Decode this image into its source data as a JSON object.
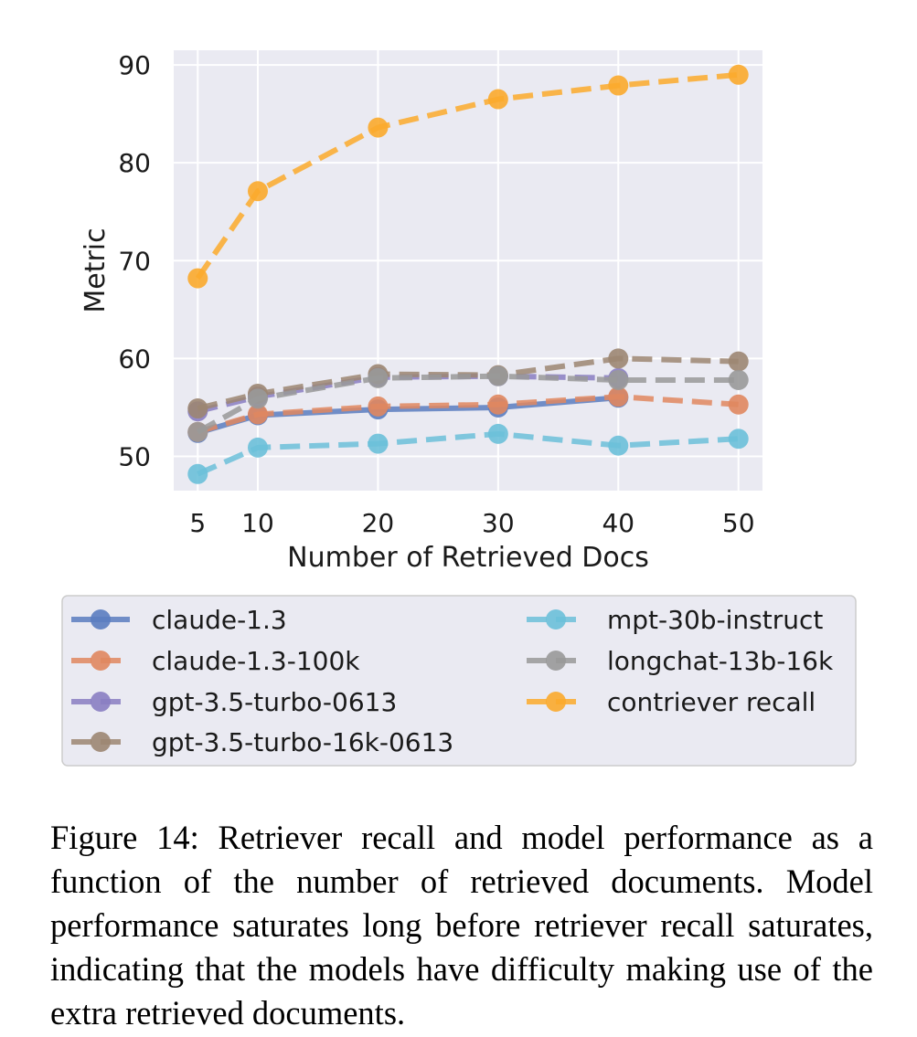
{
  "chart_data": {
    "type": "line",
    "title": "",
    "xlabel": "Number of Retrieved Docs",
    "ylabel": "Metric",
    "x": [
      5,
      10,
      20,
      30,
      40,
      50
    ],
    "xlim": [
      3,
      52
    ],
    "ylim": [
      46.5,
      91.5
    ],
    "xticks": [
      5,
      10,
      20,
      30,
      40,
      50
    ],
    "yticks": [
      50,
      60,
      70,
      80,
      90
    ],
    "grid": true,
    "legend_position": "below",
    "series": [
      {
        "name": "claude-1.3",
        "color": "#5b7dc0",
        "style": "solid",
        "values": [
          52.4,
          54.2,
          54.8,
          55.0,
          56.0,
          null
        ]
      },
      {
        "name": "claude-1.3-100k",
        "color": "#e0875f",
        "style": "dashed",
        "values": [
          52.5,
          54.3,
          55.1,
          55.3,
          56.1,
          55.3
        ]
      },
      {
        "name": "gpt-3.5-turbo-0613",
        "color": "#8a7ec2",
        "style": "dashed",
        "values": [
          54.6,
          56.1,
          58.1,
          58.2,
          58.0,
          null
        ]
      },
      {
        "name": "gpt-3.5-turbo-16k-0613",
        "color": "#9c8672",
        "style": "dashed",
        "values": [
          54.9,
          56.4,
          58.4,
          58.3,
          60.0,
          59.7
        ]
      },
      {
        "name": "mpt-30b-instruct",
        "color": "#6cc0d9",
        "style": "dashed",
        "values": [
          48.2,
          50.9,
          51.3,
          52.3,
          51.1,
          51.8
        ]
      },
      {
        "name": "longchat-13b-16k",
        "color": "#999999",
        "style": "dashed",
        "values": [
          52.5,
          55.9,
          58.0,
          58.2,
          57.8,
          57.8
        ]
      },
      {
        "name": "contriever recall",
        "color": "#fbaa2c",
        "style": "dashed",
        "values": [
          68.2,
          77.1,
          83.6,
          86.5,
          87.9,
          89.0
        ]
      }
    ]
  },
  "caption": "Figure 14: Retriever recall and model performance as a function of the number of retrieved documents. Model performance saturates long before retriever recall saturates, indicating that the models have difficulty making use of the extra retrieved documents."
}
